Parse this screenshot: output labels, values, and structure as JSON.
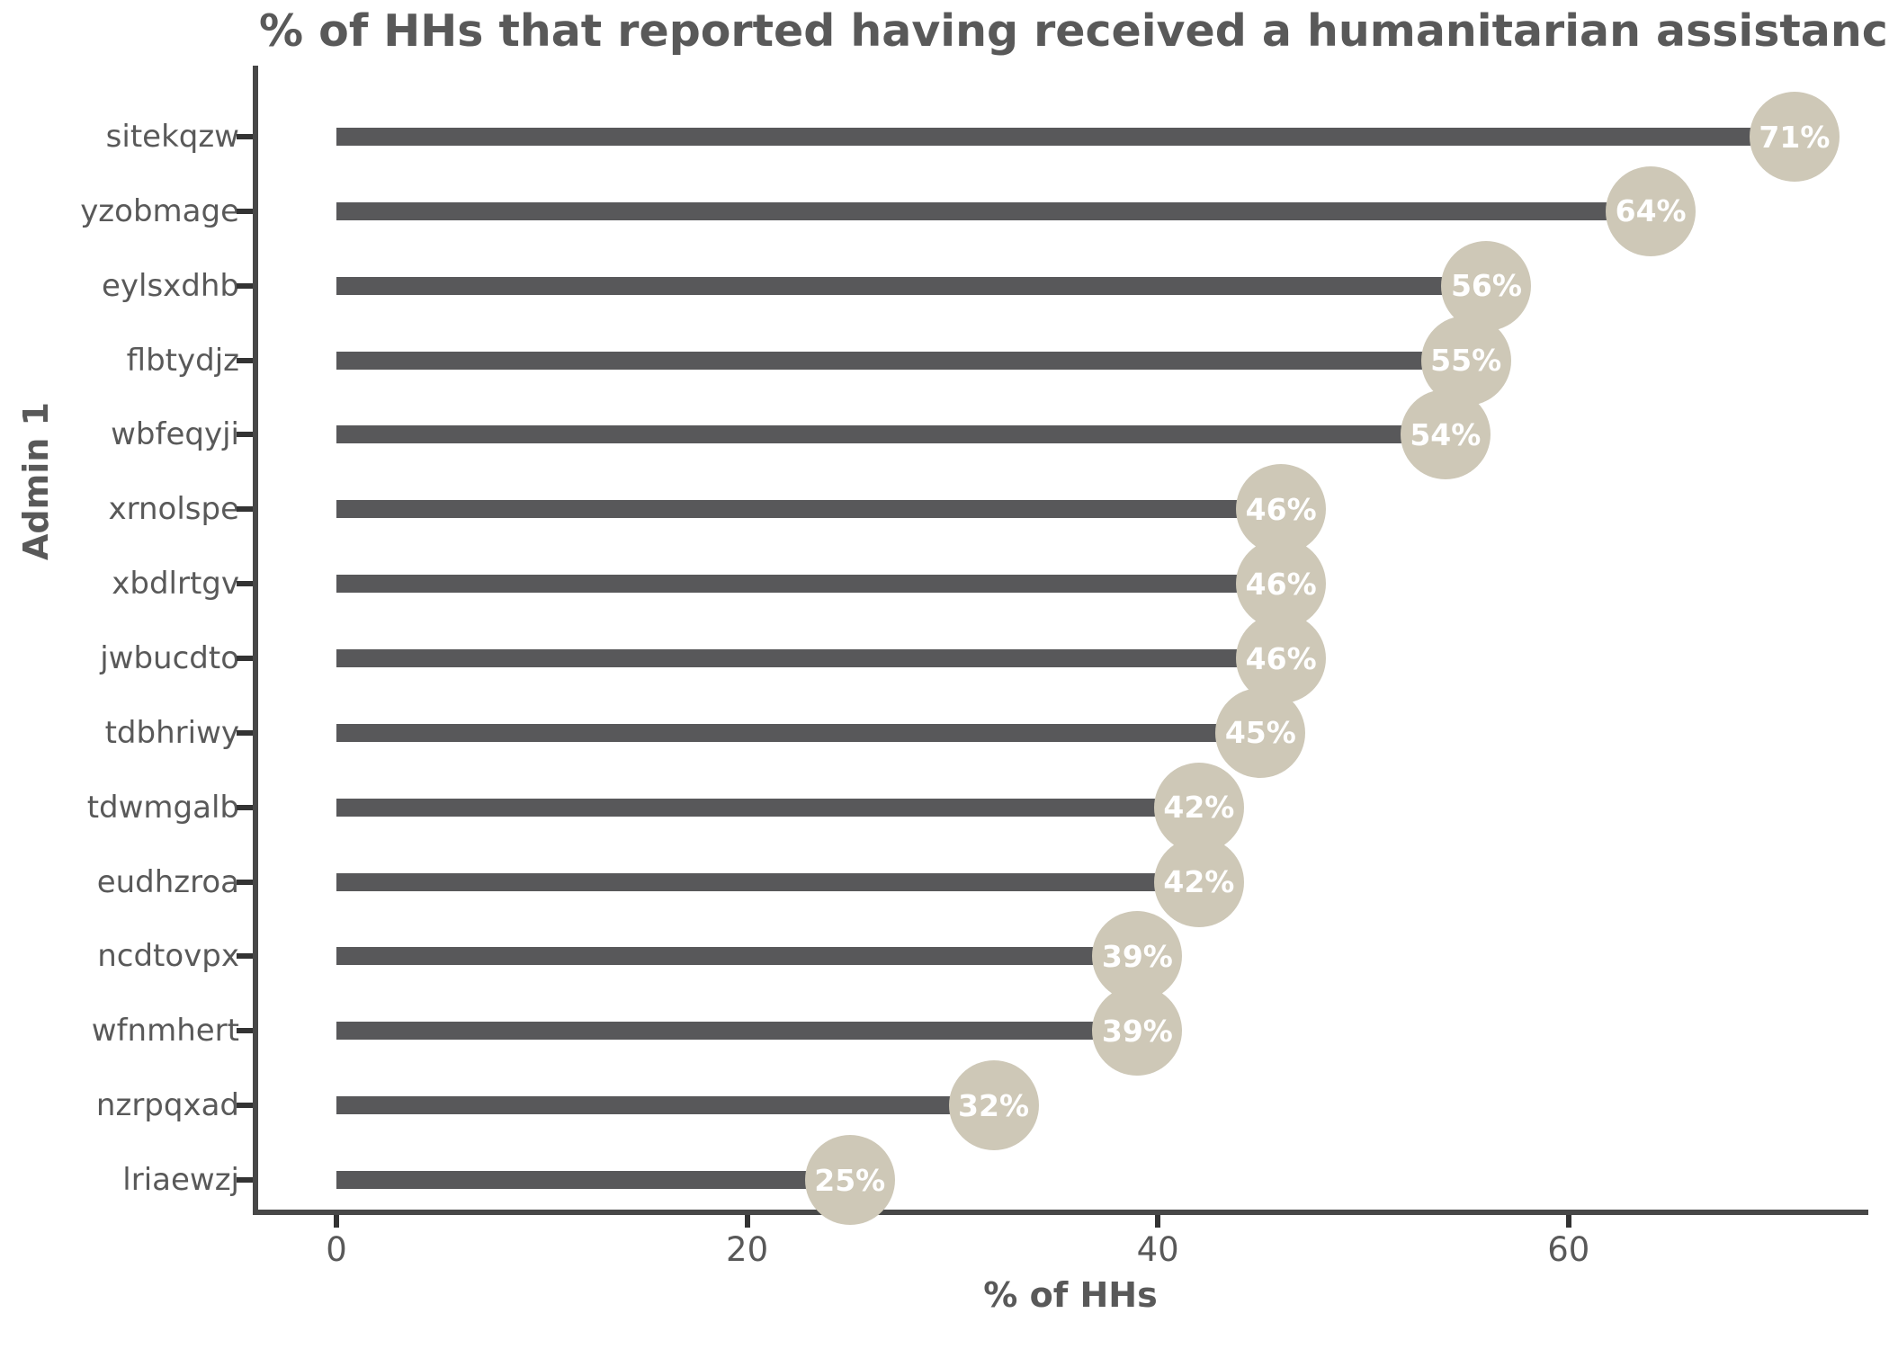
{
  "title": "% of HHs that reported having received a humanitarian assistance",
  "chart_data": {
    "type": "bar",
    "subtype": "lollipop",
    "orientation": "horizontal",
    "title": "% of HHs that reported having received a humanitarian assistance",
    "xlabel": "% of HHs",
    "ylabel": "Admin 1",
    "categories": [
      "sitekqzw",
      "yzobmage",
      "eylsxdhb",
      "flbtydjz",
      "wbfeqyji",
      "xrnolspe",
      "xbdlrtgv",
      "jwbucdto",
      "tdbhriwy",
      "tdwmgalb",
      "eudhzroa",
      "ncdtovpx",
      "wfnmhert",
      "nzrpqxad",
      "lriaewzj"
    ],
    "values": [
      71,
      64,
      56,
      55,
      54,
      46,
      46,
      46,
      45,
      42,
      42,
      39,
      39,
      32,
      25
    ],
    "value_labels": [
      "71%",
      "64%",
      "56%",
      "55%",
      "54%",
      "46%",
      "46%",
      "46%",
      "45%",
      "42%",
      "42%",
      "39%",
      "39%",
      "32%",
      "25%"
    ],
    "x_ticks": [
      0,
      20,
      40,
      60
    ],
    "xlim": [
      -3.6,
      74.6
    ],
    "grid": false,
    "legend": "none",
    "colors": {
      "bar": "#58585a",
      "bubble_fill": "#cec8b7",
      "bubble_text": "#ffffff",
      "axis_line": "#474747",
      "tick": "#333333",
      "text": "#595959"
    }
  }
}
